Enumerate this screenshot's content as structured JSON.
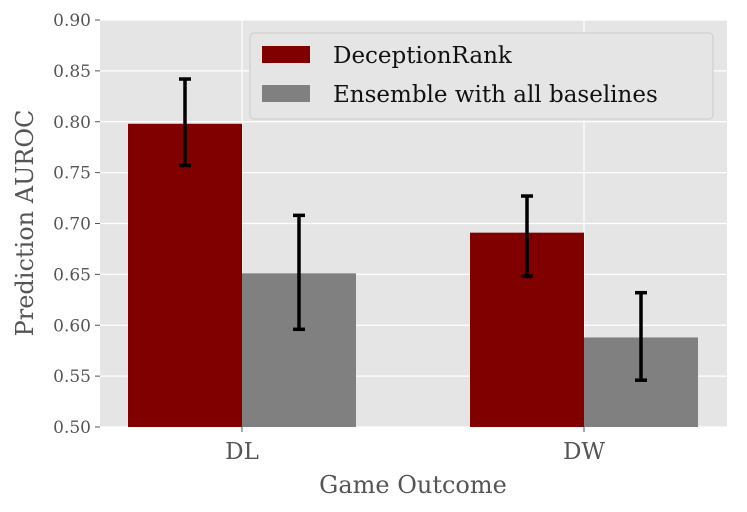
{
  "chart_data": {
    "type": "bar",
    "title": "",
    "xlabel": "Game Outcome",
    "ylabel": "Prediction AUROC",
    "categories": [
      "DL",
      "DW"
    ],
    "ylim": [
      0.5,
      0.9
    ],
    "yticks": [
      "0.50",
      "0.55",
      "0.60",
      "0.65",
      "0.70",
      "0.75",
      "0.80",
      "0.85",
      "0.90"
    ],
    "grid": true,
    "legend_position": "top-right",
    "series": [
      {
        "name": "DeceptionRank",
        "color": "#800000",
        "values": [
          0.798,
          0.691
        ],
        "error_low": [
          0.757,
          0.648
        ],
        "error_high": [
          0.842,
          0.727
        ]
      },
      {
        "name": "Ensemble with all baselines",
        "color": "#808080",
        "values": [
          0.651,
          0.588
        ],
        "error_low": [
          0.596,
          0.546
        ],
        "error_high": [
          0.708,
          0.632
        ]
      }
    ],
    "background_color": "#e5e5e5",
    "grid_color": "#ffffff"
  }
}
